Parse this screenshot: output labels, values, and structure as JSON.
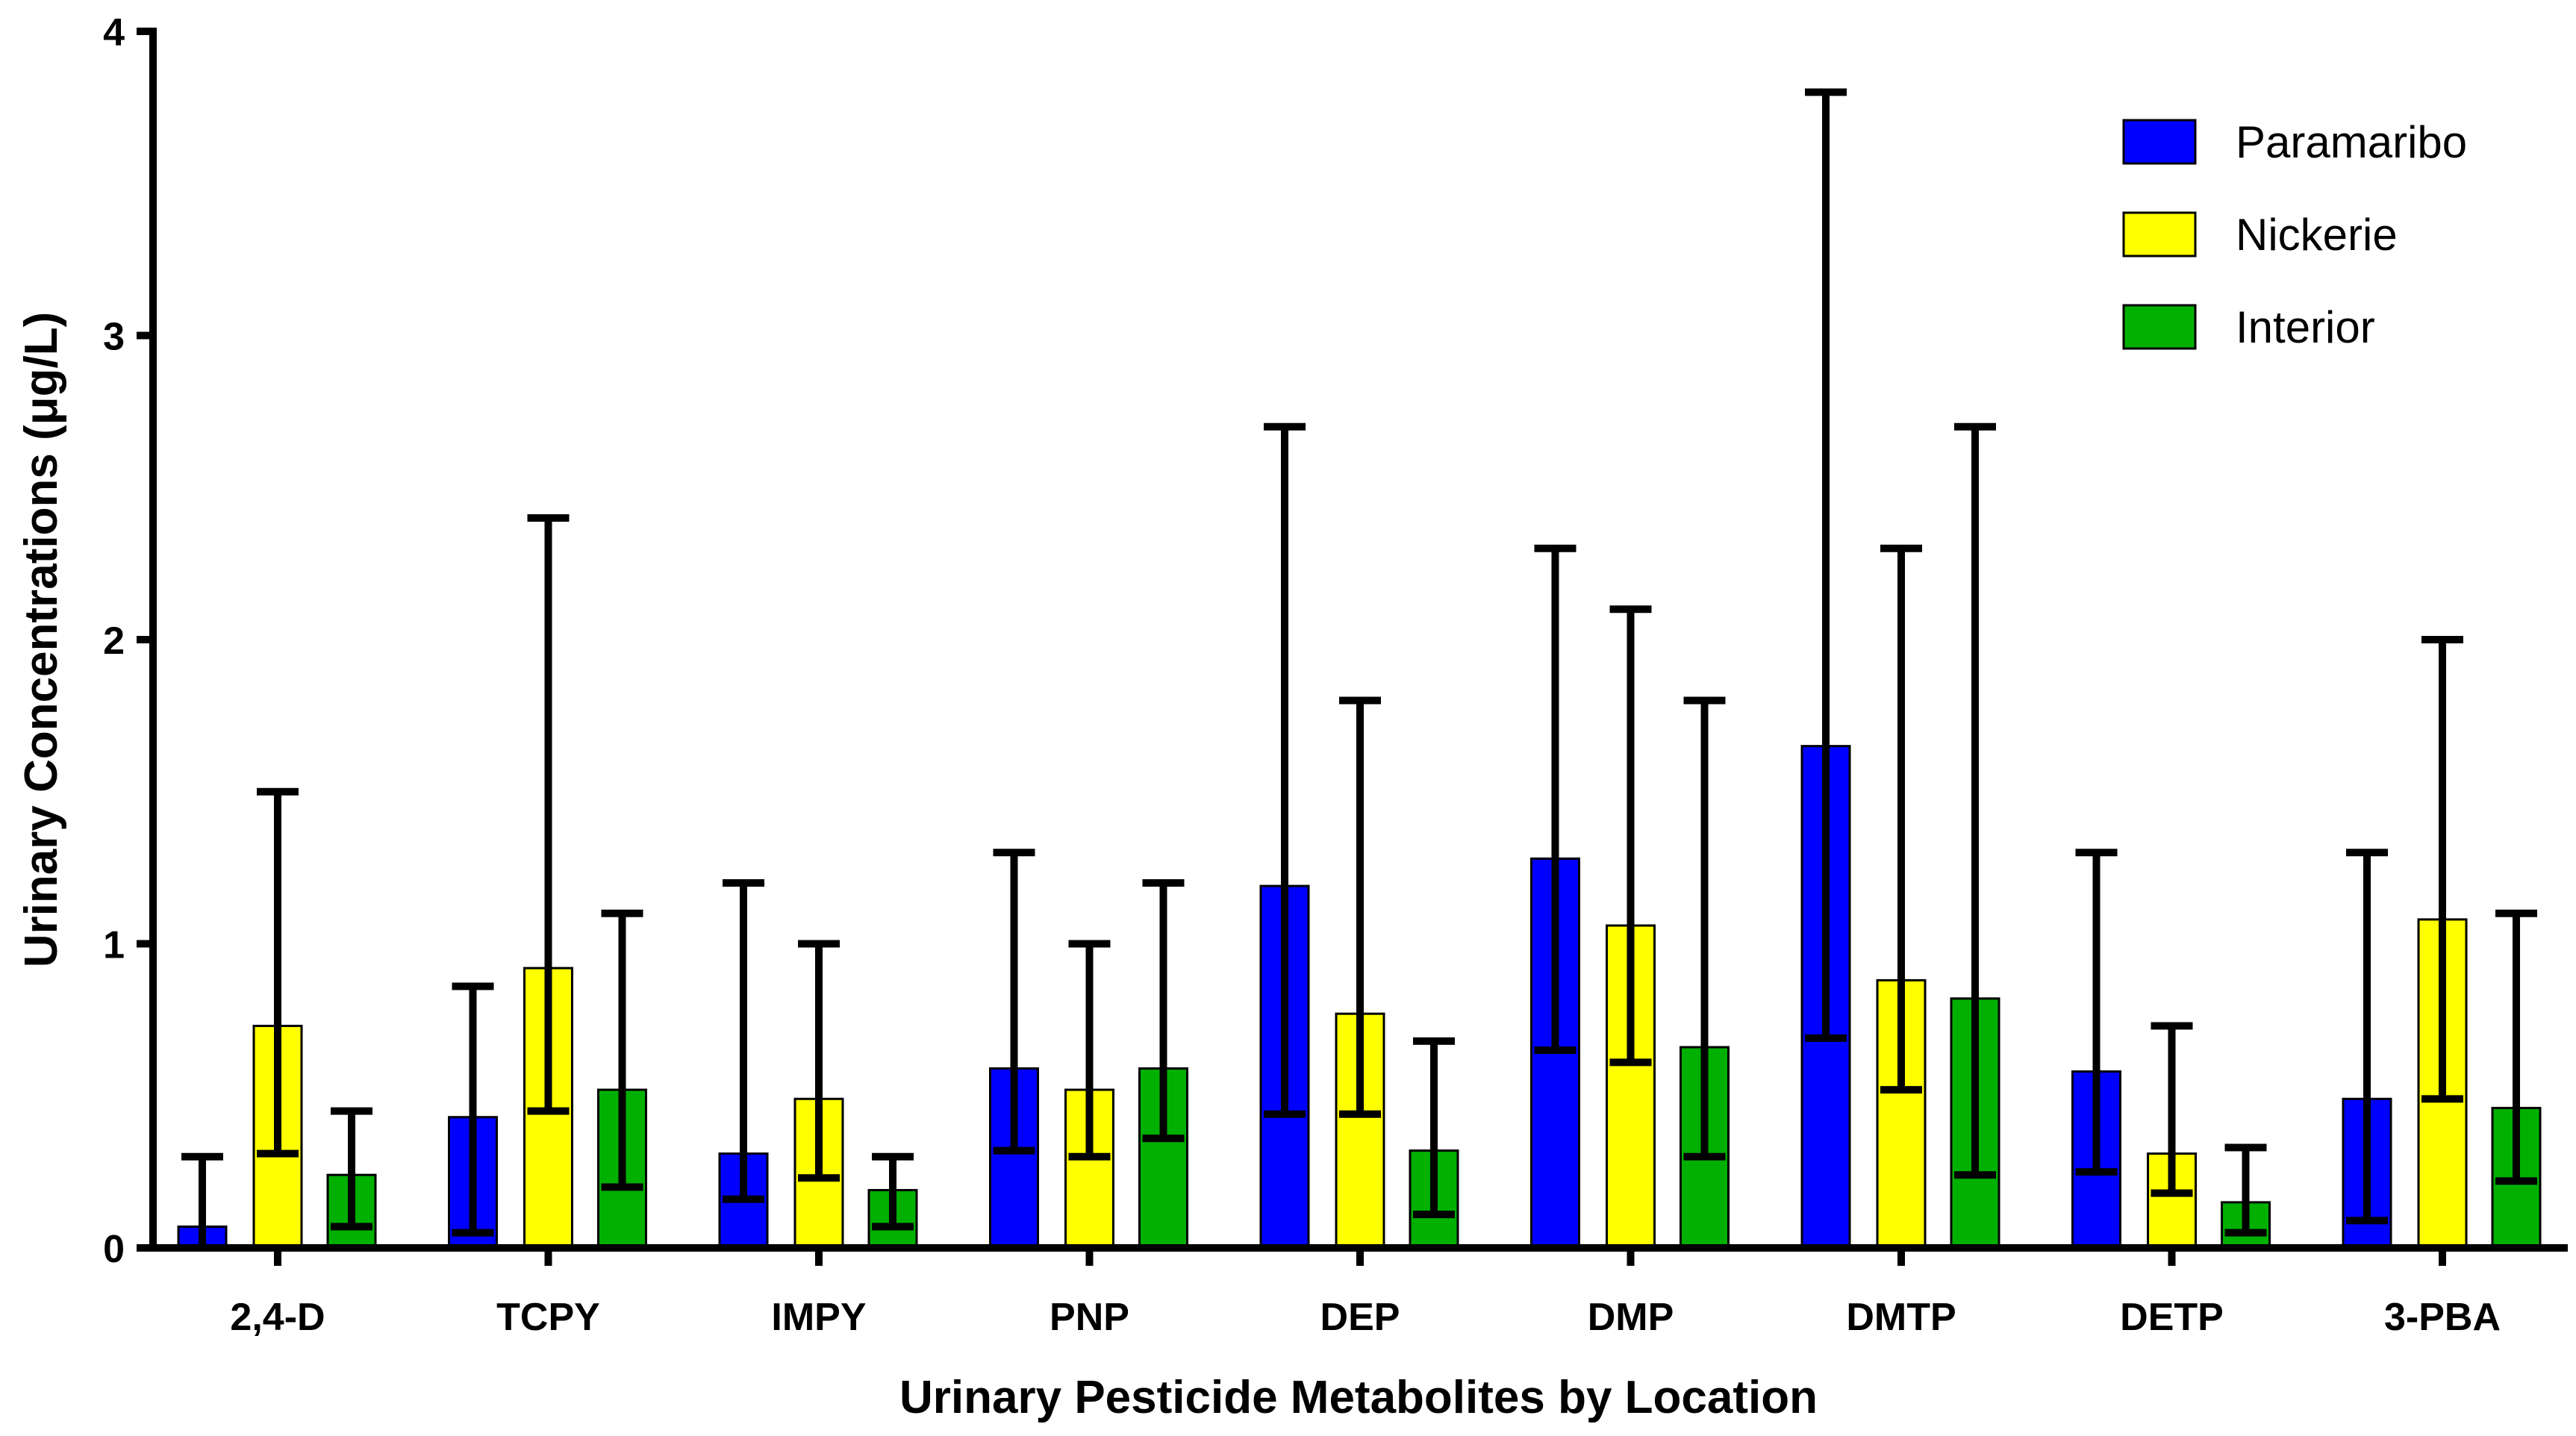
{
  "chart_data": {
    "type": "bar",
    "title": "",
    "xlabel": "Urinary Pesticide Metabolites by Location",
    "ylabel": "Urinary Concentrations (μg/L)",
    "ylim": [
      0,
      4
    ],
    "yticks": [
      "0",
      "1",
      "2",
      "3",
      "4"
    ],
    "categories": [
      "2,4-D",
      "TCPY",
      "IMPY",
      "PNP",
      "DEP",
      "DMP",
      "DMTP",
      "DETP",
      "3-PBA"
    ],
    "legend_position": "top-right",
    "series": [
      {
        "name": "Paramaribo",
        "color": "#0000FF",
        "values": [
          0.07,
          0.43,
          0.31,
          0.59,
          1.19,
          1.28,
          1.65,
          0.58,
          0.49
        ],
        "error_low": [
          0.0,
          0.05,
          0.16,
          0.32,
          0.44,
          0.65,
          0.69,
          0.25,
          0.09
        ],
        "error_high": [
          0.3,
          0.86,
          1.2,
          1.3,
          2.7,
          2.3,
          3.8,
          1.3,
          1.3
        ]
      },
      {
        "name": "Nickerie",
        "color": "#FFFF00",
        "values": [
          0.73,
          0.92,
          0.49,
          0.52,
          0.77,
          1.06,
          0.88,
          0.31,
          1.08
        ],
        "error_low": [
          0.31,
          0.45,
          0.23,
          0.3,
          0.44,
          0.61,
          0.52,
          0.18,
          0.49
        ],
        "error_high": [
          1.5,
          2.4,
          1.0,
          1.0,
          1.8,
          2.1,
          2.3,
          0.73,
          2.0
        ]
      },
      {
        "name": "Interior",
        "color": "#00B000",
        "values": [
          0.24,
          0.52,
          0.19,
          0.59,
          0.32,
          0.66,
          0.82,
          0.15,
          0.46
        ],
        "error_low": [
          0.07,
          0.2,
          0.07,
          0.36,
          0.11,
          0.3,
          0.24,
          0.05,
          0.22
        ],
        "error_high": [
          0.45,
          1.1,
          0.3,
          1.2,
          0.68,
          1.8,
          2.7,
          0.33,
          1.1
        ]
      }
    ]
  }
}
